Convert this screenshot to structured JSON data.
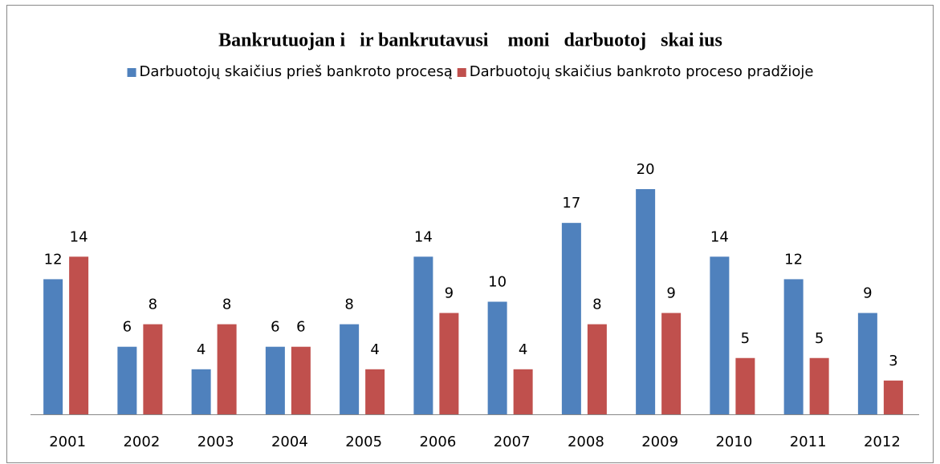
{
  "chart_data": {
    "type": "bar",
    "title": "Bankrutuojan i   ir bankrutavusi    moni   darbuotoj   skai ius",
    "categories": [
      "2001",
      "2002",
      "2003",
      "2004",
      "2005",
      "2006",
      "2007",
      "2008",
      "2009",
      "2010",
      "2011",
      "2012"
    ],
    "series": [
      {
        "name": "Darbuotojų skaičius prieš bankroto procesą",
        "color": "#4f81bd",
        "values": [
          12,
          6,
          4,
          6,
          8,
          14,
          10,
          17,
          20,
          14,
          12,
          9
        ]
      },
      {
        "name": "Darbuotojų skaičius bankroto proceso pradžioje",
        "color": "#c0504d",
        "values": [
          14,
          8,
          8,
          6,
          4,
          9,
          4,
          8,
          9,
          5,
          5,
          3
        ]
      }
    ],
    "legend": "top"
  }
}
